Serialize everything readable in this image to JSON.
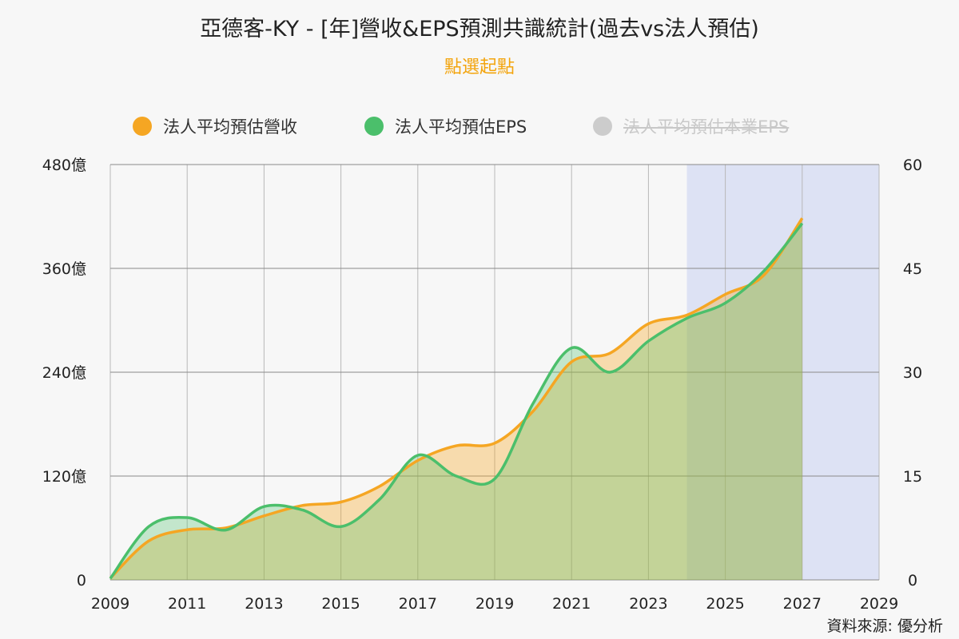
{
  "header": {
    "title": "亞德客-KY - [年]營收&EPS預測共識統計(過去vs法人預估)",
    "subtitle": "點選起點"
  },
  "source": "資料來源: 優分析",
  "chart_data": {
    "type": "area",
    "title": "亞德客-KY - [年]營收&EPS預測共識統計(過去vs法人預估)",
    "subtitle": "點選起點",
    "x_ticks": [
      "2009",
      "2011",
      "2013",
      "2015",
      "2017",
      "2019",
      "2021",
      "2023",
      "2025",
      "2027",
      "2029"
    ],
    "xlim": [
      2009,
      2029
    ],
    "y_left": {
      "ticks": [
        "0",
        "120億",
        "240億",
        "360億",
        "480億"
      ],
      "lim": [
        0,
        480
      ]
    },
    "y_right": {
      "ticks": [
        "0",
        "15",
        "30",
        "45",
        "60"
      ],
      "lim": [
        0,
        60
      ]
    },
    "forecast_band": [
      2024,
      2027
    ],
    "post_forecast_band": [
      2027,
      2029
    ],
    "legend_position": "top-center",
    "grid": true,
    "series": [
      {
        "name": "法人平均預估營收",
        "axis": "left",
        "color": "#f5a623",
        "visible": true,
        "x": [
          2009,
          2010,
          2011,
          2012,
          2013,
          2014,
          2015,
          2016,
          2017,
          2018,
          2019,
          2020,
          2021,
          2022,
          2023,
          2024,
          2025,
          2026,
          2027
        ],
        "y": [
          2,
          45,
          58,
          60,
          74,
          86,
          90,
          108,
          138,
          155,
          158,
          195,
          252,
          262,
          296,
          306,
          330,
          352,
          418
        ]
      },
      {
        "name": "法人平均預估EPS",
        "axis": "right",
        "color": "#4bbf6b",
        "visible": true,
        "x": [
          2009,
          2010,
          2011,
          2012,
          2013,
          2014,
          2015,
          2016,
          2017,
          2018,
          2019,
          2020,
          2021,
          2022,
          2023,
          2024,
          2025,
          2026,
          2027
        ],
        "y": [
          0.2,
          7.7,
          9.0,
          7.2,
          10.6,
          10.1,
          7.7,
          11.6,
          18.0,
          15.0,
          14.6,
          25.5,
          33.5,
          30.0,
          34.5,
          37.8,
          40.0,
          44.6,
          51.5
        ]
      },
      {
        "name": "法人平均預估本業EPS",
        "axis": "right",
        "color": "#cccccc",
        "visible": false,
        "x": [],
        "y": []
      }
    ]
  }
}
